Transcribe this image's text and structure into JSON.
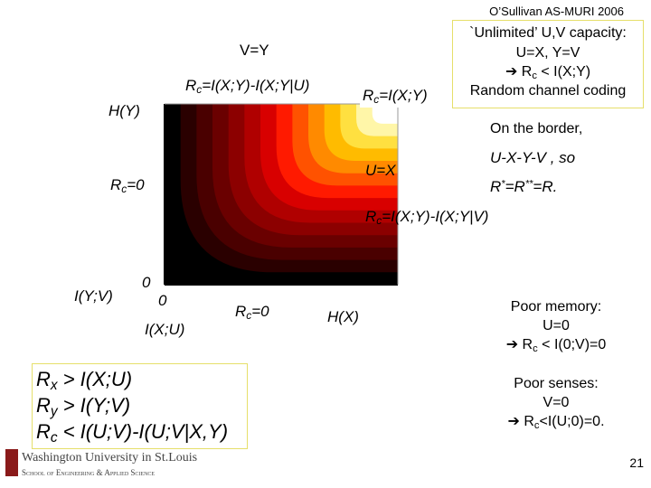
{
  "header": {
    "credit": "O’Sullivan AS-MURI 2006"
  },
  "plot_labels": {
    "v_eq_y": "V=Y",
    "rc_upper": [
      "R",
      "c",
      "=I(X;Y)-I(X;Y|U)"
    ],
    "h_y": "H(Y)",
    "rc_corner": [
      "R",
      "c",
      "=I(X;Y)"
    ],
    "u_eq_x": "U=X",
    "rc_zero_left": [
      "R",
      "c",
      "=0"
    ],
    "rc_lower": [
      "R",
      "c",
      "=I(X;Y)-I(X;Y|V)"
    ],
    "i_yv": "I(Y;V)",
    "zero_y": "0",
    "zero_x": "0",
    "i_xu": "I(X;U)",
    "rc_zero_bottom": [
      "R",
      "c",
      "=0"
    ],
    "h_x": "H(X)"
  },
  "unlimited_box": {
    "title": "`Unlimited’ U,V capacity:",
    "line1": "U=X,  Y=V",
    "line2": [
      "➔  R",
      "c",
      " < I(X;Y)"
    ],
    "line3": "Random channel coding"
  },
  "border_note": {
    "line1": "On the border,",
    "line2": "U-X-Y-V , so",
    "line3": [
      "R",
      "*",
      "=R",
      "**",
      "=R."
    ]
  },
  "constraints": [
    [
      "R",
      "x",
      " > I(X;U)"
    ],
    [
      "R",
      "y",
      " > I(Y;V)"
    ],
    [
      "R",
      "c",
      " < I(U;V)-I(U;V|X,Y)"
    ]
  ],
  "poor_memory": {
    "title": "Poor memory:",
    "line1": "U=0",
    "line2": [
      "➔  R",
      "c",
      " < I(0;V)=0"
    ]
  },
  "poor_senses": {
    "title": "Poor senses:",
    "line1": "V=0",
    "line2": [
      "➔ R",
      "c",
      "<I(U;0)=0."
    ]
  },
  "footer": {
    "university": "Washington University in St.Louis",
    "school": "School of Engineering & Applied Science",
    "page": "21"
  }
}
